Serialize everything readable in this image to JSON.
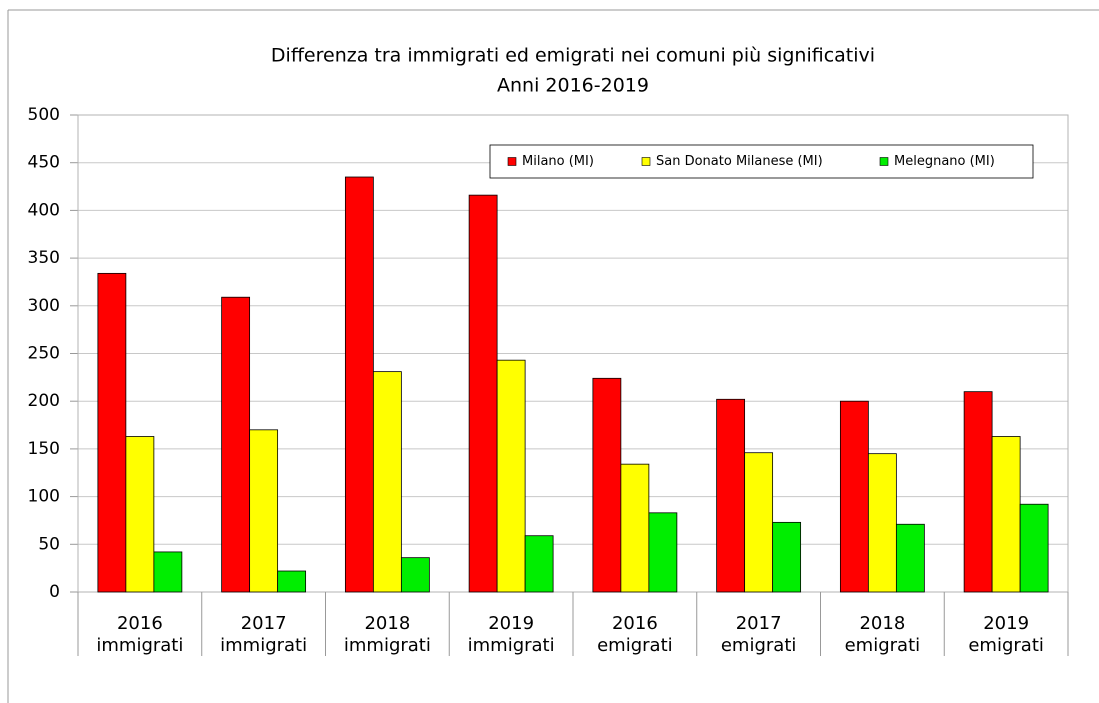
{
  "chart_data": {
    "type": "bar",
    "title": "Differenza tra immigrati ed emigrati nei comuni più significativi",
    "subtitle": "Anni 2016-2019",
    "categories": [
      [
        "2016",
        "immigrati"
      ],
      [
        "2017",
        "immigrati"
      ],
      [
        "2018",
        "immigrati"
      ],
      [
        "2019",
        "immigrati"
      ],
      [
        "2016",
        "emigrati"
      ],
      [
        "2017",
        "emigrati"
      ],
      [
        "2018",
        "emigrati"
      ],
      [
        "2019",
        "emigrati"
      ]
    ],
    "series": [
      {
        "name": "Milano (MI)",
        "color": "#ff0000",
        "values": [
          334,
          309,
          435,
          416,
          224,
          202,
          200,
          210
        ]
      },
      {
        "name": "San Donato Milanese (MI)",
        "color": "#ffff00",
        "values": [
          163,
          170,
          231,
          243,
          134,
          146,
          145,
          163
        ]
      },
      {
        "name": "Melegnano (MI)",
        "color": "#00ee00",
        "values": [
          42,
          22,
          36,
          59,
          83,
          73,
          71,
          92
        ]
      }
    ],
    "ylim": [
      0,
      500
    ],
    "yticks": [
      0,
      50,
      100,
      150,
      200,
      250,
      300,
      350,
      400,
      450,
      500
    ],
    "grid": true,
    "legend": "top-right"
  }
}
